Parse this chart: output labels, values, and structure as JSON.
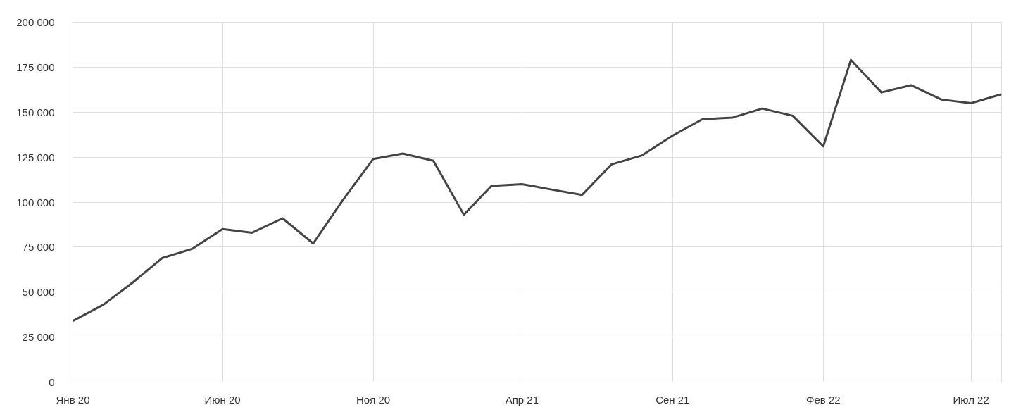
{
  "chart_data": {
    "type": "line",
    "x": [
      "2020-01",
      "2020-02",
      "2020-03",
      "2020-04",
      "2020-05",
      "2020-06",
      "2020-07",
      "2020-08",
      "2020-09",
      "2020-10",
      "2020-11",
      "2020-12",
      "2021-01",
      "2021-02",
      "2021-03",
      "2021-04",
      "2021-05",
      "2021-06",
      "2021-07",
      "2021-08",
      "2021-09",
      "2021-10",
      "2021-11",
      "2021-12",
      "2022-01",
      "2022-02",
      "2022-03",
      "2022-04",
      "2022-05",
      "2022-06",
      "2022-07",
      "2022-08"
    ],
    "series": [
      {
        "color": "#444444",
        "values": [
          34000,
          43000,
          55000,
          69000,
          74000,
          85000,
          83000,
          91000,
          77000,
          101000,
          124000,
          127000,
          123000,
          93000,
          109000,
          110000,
          107000,
          104000,
          121000,
          126000,
          137000,
          146000,
          147000,
          152000,
          148000,
          131000,
          179000,
          161000,
          165000,
          157000,
          155000,
          160000
        ]
      }
    ],
    "xlim": [
      "2020-01",
      "2022-08"
    ],
    "xticks": [
      {
        "value": "2020-01",
        "label": "Янв 20"
      },
      {
        "value": "2020-06",
        "label": "Июн 20"
      },
      {
        "value": "2020-11",
        "label": "Ноя 20"
      },
      {
        "value": "2021-04",
        "label": "Апр 21"
      },
      {
        "value": "2021-09",
        "label": "Сен 21"
      },
      {
        "value": "2022-02",
        "label": "Фев 22"
      },
      {
        "value": "2022-07",
        "label": "Июл 22"
      }
    ],
    "ylim": [
      0,
      200000
    ],
    "yticks": [
      {
        "value": 0,
        "label": "0"
      },
      {
        "value": 25000,
        "label": "25 000"
      },
      {
        "value": 50000,
        "label": "50 000"
      },
      {
        "value": 75000,
        "label": "75 000"
      },
      {
        "value": 100000,
        "label": "100 000"
      },
      {
        "value": 125000,
        "label": "125 000"
      },
      {
        "value": 150000,
        "label": "150 000"
      },
      {
        "value": 175000,
        "label": "175 000"
      },
      {
        "value": 200000,
        "label": "200 000"
      }
    ],
    "grid": true,
    "line_style": "solid"
  }
}
